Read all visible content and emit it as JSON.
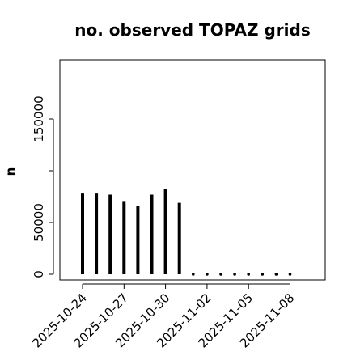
{
  "chart_data": {
    "type": "bar",
    "title": "no. observed TOPAZ grids",
    "xlabel": "",
    "ylabel": "n",
    "ylim": [
      0,
      210000
    ],
    "yticks": [
      0,
      50000,
      100000,
      150000
    ],
    "ytick_labels": [
      "0",
      "50000",
      "",
      "150000"
    ],
    "x_day_index": [
      0,
      1,
      2,
      3,
      4,
      5,
      6,
      7,
      8,
      9,
      10,
      11,
      12,
      13,
      14,
      15
    ],
    "x_dates": [
      "2025-10-24",
      "2025-10-25",
      "2025-10-26",
      "2025-10-27",
      "2025-10-28",
      "2025-10-29",
      "2025-10-30",
      "2025-10-31",
      "2025-11-01",
      "2025-11-02",
      "2025-11-03",
      "2025-11-04",
      "2025-11-05",
      "2025-11-06",
      "2025-11-07",
      "2025-11-08"
    ],
    "values": [
      78000,
      78000,
      77000,
      70000,
      66000,
      77000,
      82000,
      69000,
      0,
      0,
      0,
      0,
      0,
      0,
      0,
      0
    ],
    "xticks": [
      "2025-10-24",
      "2025-10-27",
      "2025-10-30",
      "2025-11-02",
      "2025-11-05",
      "2025-11-08"
    ],
    "xtick_colors": [
      "#000000",
      "#000000",
      "#228B22",
      "#000000",
      "#000000",
      "#000000"
    ],
    "grid": false,
    "bar_color": "#000000"
  }
}
